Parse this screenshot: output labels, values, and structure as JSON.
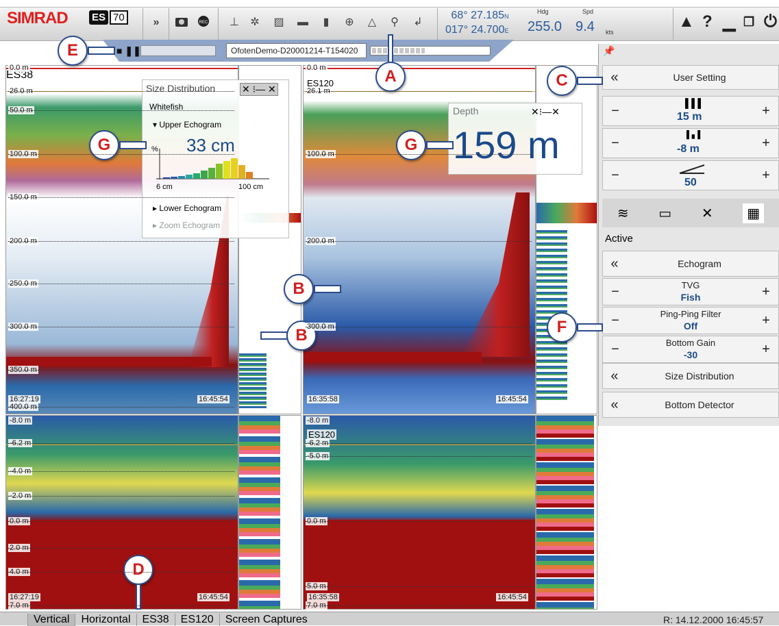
{
  "toolbar": {
    "brand": "SIMRAD",
    "model_es": "ES",
    "model_num": "70",
    "icons": [
      "double-chevron-icon",
      "camera-icon",
      "record-icon",
      "transducer-icon",
      "colour-scale-icon",
      "gradient-icon",
      "palette-icon",
      "histogram-icon",
      "target-icon",
      "navigation-icon",
      "zoom-icon",
      "arrow-icon"
    ],
    "lat": "68° 27.185",
    "lat_dir": "N",
    "lon": "017° 24.700",
    "lon_dir": "E",
    "hdg_label": "Hdg",
    "hdg_value": "255.0",
    "spd_label": "Spd",
    "spd_value": "9.4",
    "spd_unit": "kts"
  },
  "replay": {
    "file": "OfotenDemo-D20001214-T154020",
    "progress": 0.45
  },
  "es38": {
    "name": "ES38",
    "depth_labels": [
      "0.0 m",
      "26.0 m",
      "50.0 m",
      "100.0 m",
      "150.0 m",
      "200.0 m",
      "250.0 m",
      "300.0 m",
      "350.0 m",
      "400.0 m"
    ],
    "time_left": "16:27:19",
    "time_right": "16:45:54"
  },
  "es120": {
    "name": "ES120",
    "depth_labels": [
      "0.0 m",
      "26.1 m",
      "100.0 m",
      "200.0 m",
      "300.0 m"
    ],
    "time_left": "16:35:58",
    "time_right": "16:45:54"
  },
  "zoom38": {
    "depth_labels": [
      "-8.0 m",
      "-6.2 m",
      "-4.0 m",
      "-2.0 m",
      "0.0 m",
      "2.0 m",
      "4.0 m",
      "7.0 m"
    ],
    "time_left": "16:27:19",
    "time_right": "16:45:54"
  },
  "zoom120": {
    "name": "ES120",
    "depth_labels": [
      "-8.0 m",
      "-6.2 m",
      "-5.0 m",
      "0.0 m",
      "5.0 m",
      "7.0 m"
    ],
    "time_left": "16:35:58",
    "time_right": "16:45:54"
  },
  "sizedist": {
    "title": "Size Distribution",
    "species": "Whitefish",
    "upper": "Upper Echogram",
    "value": "33 cm",
    "unit_axis": "%",
    "x_min": "6 cm",
    "x_max": "100 cm",
    "lower": "Lower Echogram",
    "zoom": "Zoom Echogram"
  },
  "depth": {
    "title": "Depth",
    "value": "159 m"
  },
  "right": {
    "user_setting": "User Setting",
    "range_value": "15 m",
    "start_value": "-8 m",
    "gain_value": "50",
    "active": "Active",
    "rows": [
      {
        "label": "Echogram"
      },
      {
        "label": "TVG",
        "value": "Fish"
      },
      {
        "label": "Ping-Ping Filter",
        "value": "Off"
      },
      {
        "label": "Bottom Gain",
        "value": "-30"
      },
      {
        "label": "Size Distribution"
      },
      {
        "label": "Bottom Detector"
      }
    ]
  },
  "status": {
    "tabs": [
      "Vertical",
      "Horizontal",
      "ES38",
      "ES120",
      "Screen Captures"
    ],
    "datetime": "R: 14.12.2000   16:45:57"
  },
  "callouts": {
    "a": "A",
    "b": "B",
    "c": "C",
    "d": "D",
    "e": "E",
    "f": "F",
    "g": "G"
  }
}
